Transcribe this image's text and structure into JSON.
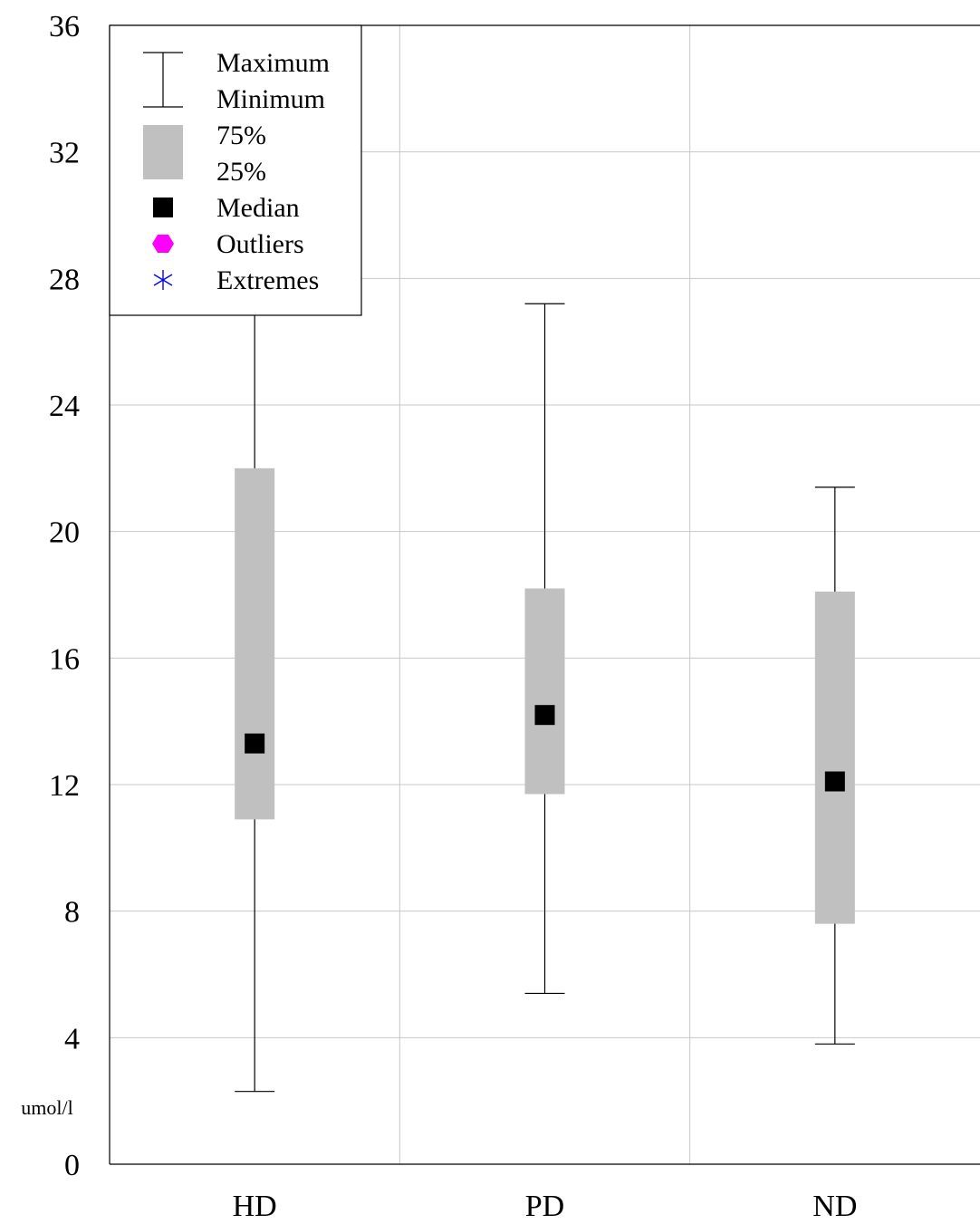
{
  "chart_data": {
    "type": "box",
    "categories": [
      "HD",
      "PD",
      "ND"
    ],
    "boxes": [
      {
        "category": "HD",
        "min": 2.3,
        "q1": 10.9,
        "median": 13.3,
        "q3": 22.0,
        "max": 28.0
      },
      {
        "category": "PD",
        "min": 5.4,
        "q1": 11.7,
        "median": 14.2,
        "q3": 18.2,
        "max": 27.2
      },
      {
        "category": "ND",
        "min": 3.8,
        "q1": 7.6,
        "median": 12.1,
        "q3": 18.1,
        "max": 21.4
      }
    ],
    "ylim": [
      0,
      36
    ],
    "yticks": [
      0,
      4,
      8,
      12,
      16,
      20,
      24,
      28,
      32,
      36
    ],
    "ylabel": "umol/l",
    "xlabel": "",
    "title": "",
    "grid": true,
    "legend": {
      "placement": "top-left",
      "items": {
        "maximum": "Maximum",
        "minimum": "Minimum",
        "q75": "75%",
        "q25": "25%",
        "median": "Median",
        "outliers": "Outliers",
        "extremes": "Extremes"
      }
    },
    "colors": {
      "box": "#c0c0c0",
      "median": "#000000",
      "whisker": "#000000",
      "grid": "#c8c8c8",
      "outlier": "#ff00ff",
      "extreme": "#0000ff"
    }
  }
}
